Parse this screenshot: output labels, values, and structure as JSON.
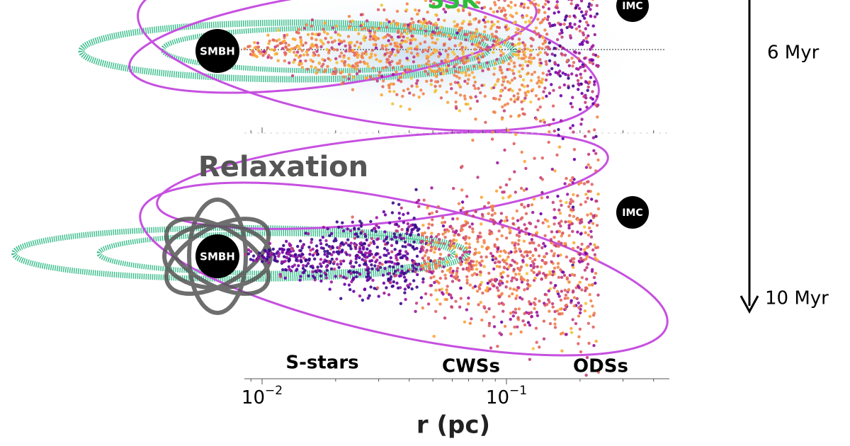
{
  "top_panel": {
    "mechanism": "SSK",
    "smbh": "SMBH",
    "imc": "IMC",
    "time": "6 Myr"
  },
  "bottom_panel": {
    "mechanism": "Relaxation",
    "smbh": "SMBH",
    "imc": "IMC",
    "time": "10 Myr",
    "populations": [
      "S-stars",
      "CWSs",
      "ODSs"
    ]
  },
  "x_axis": {
    "label": "r (pc)",
    "ticks": [
      {
        "base": "10",
        "exponent": "−2"
      },
      {
        "base": "10",
        "exponent": "−1"
      }
    ]
  }
}
